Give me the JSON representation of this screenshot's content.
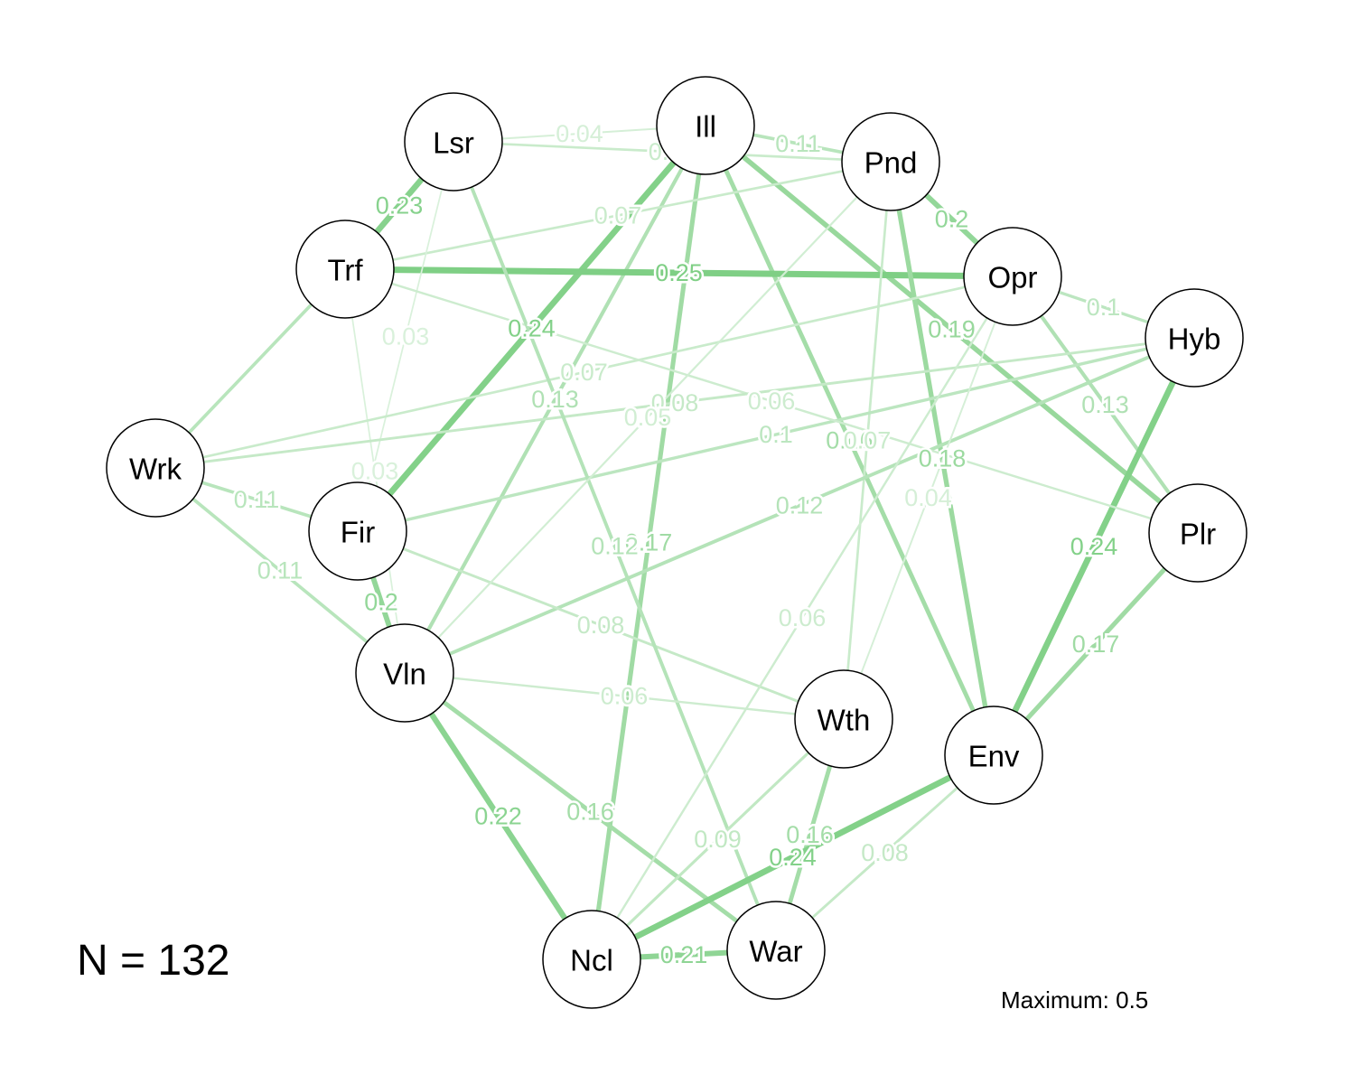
{
  "sample_size_label": "N = 132",
  "maximum_label": "Maximum: 0.5",
  "maximum_value": 0.5,
  "colors": {
    "edge_positive": "#7fcf85",
    "node_fill": "#ffffff",
    "node_stroke": "#000000"
  },
  "nodes": [
    {
      "id": "Lsr"
    },
    {
      "id": "Ill"
    },
    {
      "id": "Pnd"
    },
    {
      "id": "Trf"
    },
    {
      "id": "Opr"
    },
    {
      "id": "Hyb"
    },
    {
      "id": "Wrk"
    },
    {
      "id": "Fir"
    },
    {
      "id": "Plr"
    },
    {
      "id": "Vln"
    },
    {
      "id": "Wth"
    },
    {
      "id": "Env"
    },
    {
      "id": "Ncl"
    },
    {
      "id": "War"
    }
  ],
  "edges": [
    {
      "from": "Lsr",
      "to": "Ill",
      "weight": 0.04,
      "label": "0.04"
    },
    {
      "from": "Lsr",
      "to": "Trf",
      "weight": 0.23,
      "label": "0.23"
    },
    {
      "from": "Lsr",
      "to": "Pnd",
      "weight": 0.07,
      "label": "0.07"
    },
    {
      "from": "Ill",
      "to": "Pnd",
      "weight": 0.11,
      "label": "0.11"
    },
    {
      "from": "Ill",
      "to": "Fir",
      "weight": 0.24,
      "label": "0.24"
    },
    {
      "from": "Ill",
      "to": "Ncl",
      "weight": 0.17,
      "label": "0.17"
    },
    {
      "from": "Ill",
      "to": "Plr",
      "weight": 0.19,
      "label": "0.19"
    },
    {
      "from": "Ill",
      "to": "Env",
      "weight": 0.16,
      "label": "0.16"
    },
    {
      "from": "Ill",
      "to": "Vln",
      "weight": 0.13,
      "label": "0.13"
    },
    {
      "from": "Trf",
      "to": "Opr",
      "weight": 0.25,
      "label": "0.25"
    },
    {
      "from": "Trf",
      "to": "Pnd",
      "weight": 0.07,
      "label": "0.07"
    },
    {
      "from": "Trf",
      "to": "Wrk",
      "weight": 0.11,
      "label": ""
    },
    {
      "from": "Trf",
      "to": "Vln",
      "weight": 0.03,
      "label": "0.03"
    },
    {
      "from": "Lsr",
      "to": "Fir",
      "weight": 0.03,
      "label": "0.03"
    },
    {
      "from": "Pnd",
      "to": "Opr",
      "weight": 0.2,
      "label": "0.2"
    },
    {
      "from": "Pnd",
      "to": "Env",
      "weight": 0.18,
      "label": "0.18"
    },
    {
      "from": "Pnd",
      "to": "Wth",
      "weight": 0.07,
      "label": "0.07"
    },
    {
      "from": "Opr",
      "to": "Hyb",
      "weight": 0.1,
      "label": "0.1"
    },
    {
      "from": "Opr",
      "to": "Plr",
      "weight": 0.13,
      "label": "0.13"
    },
    {
      "from": "Opr",
      "to": "Wrk",
      "weight": 0.07,
      "label": "0.07"
    },
    {
      "from": "Hyb",
      "to": "Env",
      "weight": 0.24,
      "label": "0.24"
    },
    {
      "from": "Hyb",
      "to": "Fir",
      "weight": 0.1,
      "label": "0.1"
    },
    {
      "from": "Hyb",
      "to": "Vln",
      "weight": 0.12,
      "label": "0.12"
    },
    {
      "from": "Plr",
      "to": "Env",
      "weight": 0.17,
      "label": "0.17"
    },
    {
      "from": "Plr",
      "to": "Trf",
      "weight": 0.06,
      "label": "0.06"
    },
    {
      "from": "Wrk",
      "to": "Fir",
      "weight": 0.11,
      "label": "0.11"
    },
    {
      "from": "Wrk",
      "to": "Vln",
      "weight": 0.11,
      "label": "0.11"
    },
    {
      "from": "Wrk",
      "to": "Hyb",
      "weight": 0.08,
      "label": "0.08"
    },
    {
      "from": "Fir",
      "to": "Vln",
      "weight": 0.2,
      "label": "0.2"
    },
    {
      "from": "Fir",
      "to": "Wth",
      "weight": 0.08,
      "label": "0.08"
    },
    {
      "from": "Lsr",
      "to": "War",
      "weight": 0.12,
      "label": "0.12"
    },
    {
      "from": "Vln",
      "to": "Ncl",
      "weight": 0.22,
      "label": "0.22"
    },
    {
      "from": "Vln",
      "to": "War",
      "weight": 0.16,
      "label": "0.16"
    },
    {
      "from": "Vln",
      "to": "Wth",
      "weight": 0.06,
      "label": "0.06"
    },
    {
      "from": "Vln",
      "to": "Pnd",
      "weight": 0.05,
      "label": "0.05"
    },
    {
      "from": "Wth",
      "to": "War",
      "weight": 0.16,
      "label": "0.16"
    },
    {
      "from": "Wth",
      "to": "Ncl",
      "weight": 0.09,
      "label": "0.09"
    },
    {
      "from": "Wth",
      "to": "Opr",
      "weight": 0.04,
      "label": "0.04"
    },
    {
      "from": "Env",
      "to": "Ncl",
      "weight": 0.24,
      "label": "0.24"
    },
    {
      "from": "Env",
      "to": "War",
      "weight": 0.08,
      "label": "0.08"
    },
    {
      "from": "Ncl",
      "to": "War",
      "weight": 0.21,
      "label": "0.21"
    },
    {
      "from": "Ncl",
      "to": "Opr",
      "weight": 0.06,
      "label": "0.06"
    }
  ]
}
